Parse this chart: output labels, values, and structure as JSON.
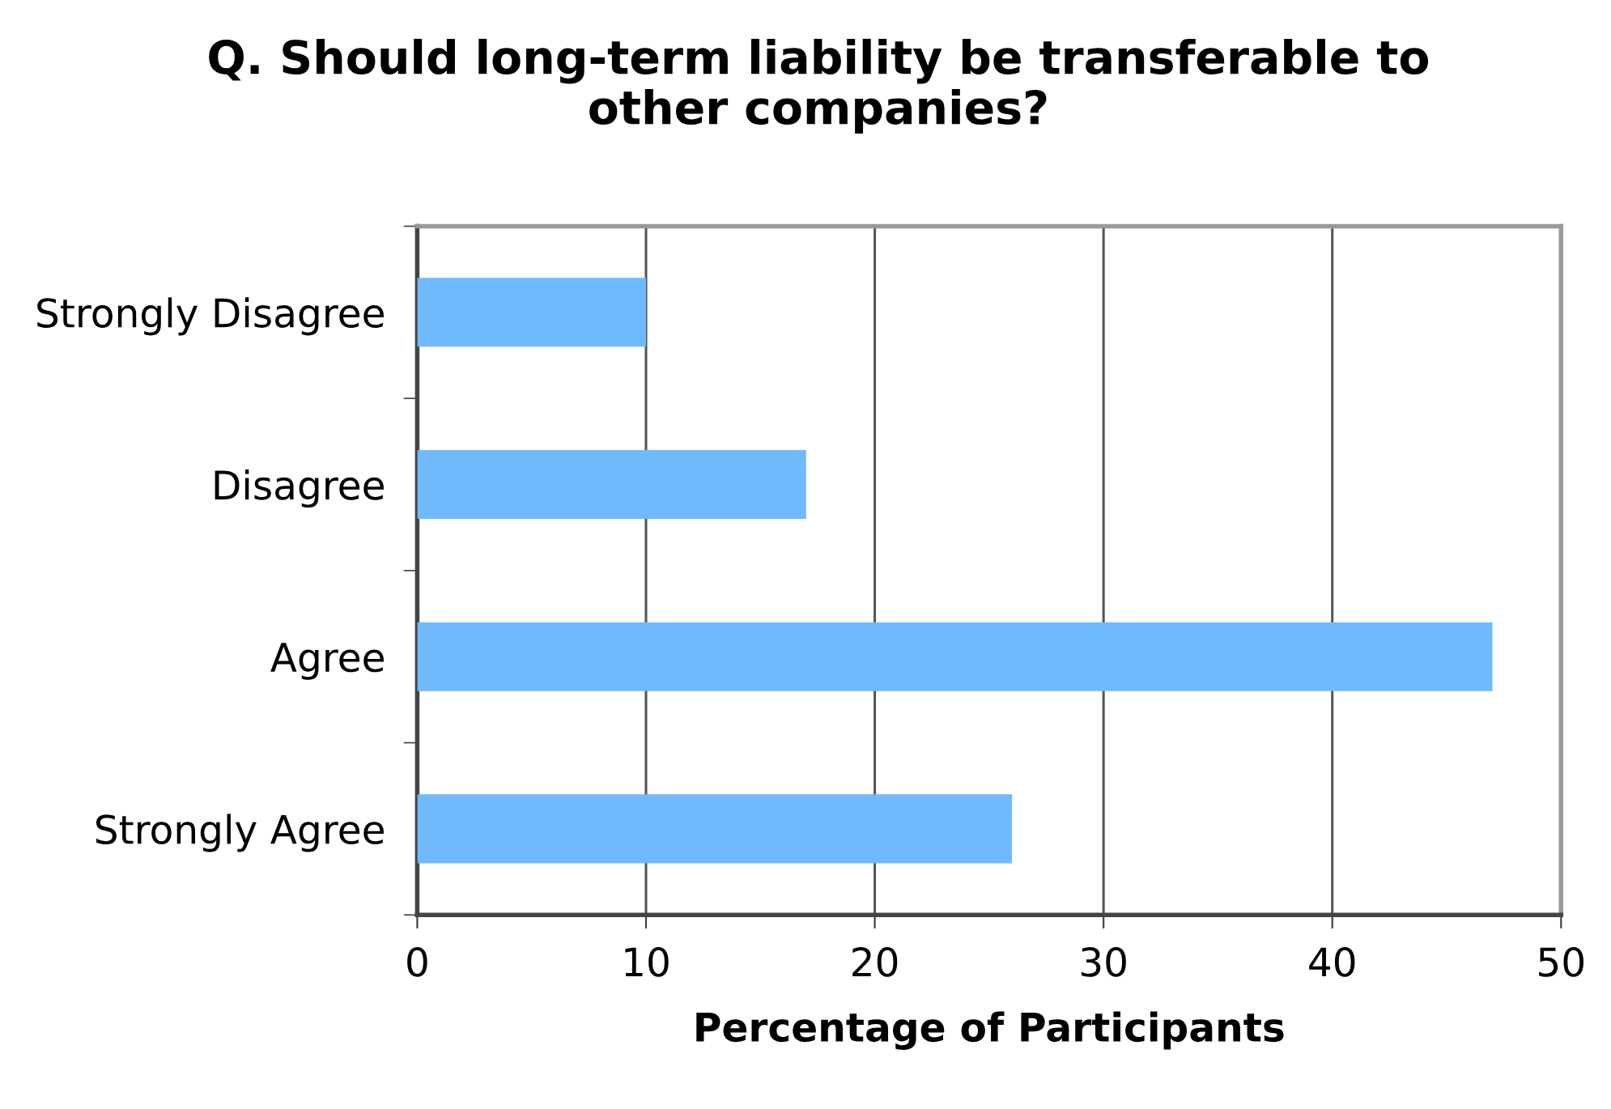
{
  "chart_data": {
    "type": "bar",
    "orientation": "horizontal",
    "title": "Q. Should long-term liability be transferable to other companies?",
    "xlabel": "Percentage of Participants",
    "categories": [
      "Strongly Disagree",
      "Disagree",
      "Agree",
      "Strongly Agree"
    ],
    "values": [
      10,
      17,
      47,
      26
    ],
    "color": "#6fb9ff",
    "xlim": [
      0,
      50
    ],
    "xticks": [
      0,
      10,
      20,
      30,
      40,
      50
    ],
    "grid": "x"
  }
}
